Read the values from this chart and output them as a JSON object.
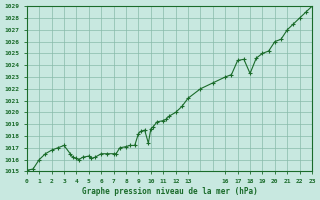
{
  "title": "Graphe pression niveau de la mer (hPa)",
  "bg_color": "#c8e8e0",
  "grid_color": "#88bbaa",
  "line_color": "#1a6b2a",
  "marker_color": "#1a6b2a",
  "xlim": [
    0,
    23
  ],
  "ylim": [
    1015,
    1029
  ],
  "xtick_positions": [
    0,
    1,
    2,
    3,
    4,
    5,
    6,
    7,
    8,
    9,
    10,
    11,
    12,
    13,
    16,
    17,
    18,
    19,
    20,
    21,
    22,
    23
  ],
  "xtick_labels": [
    "0",
    "1",
    "2",
    "3",
    "4",
    "5",
    "6",
    "7",
    "8",
    "9",
    "10",
    "11",
    "12",
    "13",
    "16",
    "17",
    "18",
    "19",
    "20",
    "21",
    "22",
    "23"
  ],
  "ytick_values": [
    1015,
    1016,
    1017,
    1018,
    1019,
    1020,
    1021,
    1022,
    1023,
    1024,
    1025,
    1026,
    1027,
    1028,
    1029
  ],
  "x": [
    0,
    0.5,
    1,
    1.5,
    2,
    2.5,
    3,
    3.5,
    3.7,
    4,
    4.2,
    4.5,
    5,
    5.2,
    5.5,
    6,
    6.5,
    7,
    7.2,
    7.5,
    8,
    8.3,
    8.7,
    9,
    9.2,
    9.5,
    9.8,
    10,
    10.2,
    10.5,
    11,
    11.2,
    11.5,
    12,
    12.5,
    13,
    14,
    15,
    16,
    16.5,
    17,
    17.5,
    18,
    18.5,
    19,
    19.5,
    20,
    20.5,
    21,
    21.5,
    22,
    22.5,
    23
  ],
  "y": [
    1015.1,
    1015.2,
    1016.0,
    1016.5,
    1016.8,
    1017.0,
    1017.2,
    1016.5,
    1016.2,
    1016.1,
    1016.0,
    1016.2,
    1016.3,
    1016.1,
    1016.2,
    1016.5,
    1016.5,
    1016.5,
    1016.5,
    1017.0,
    1017.1,
    1017.2,
    1017.2,
    1018.2,
    1018.4,
    1018.5,
    1017.4,
    1018.6,
    1018.8,
    1019.2,
    1019.3,
    1019.4,
    1019.7,
    1020.0,
    1020.5,
    1021.2,
    1022.0,
    1022.5,
    1023.0,
    1023.2,
    1024.4,
    1024.5,
    1023.3,
    1024.6,
    1025.0,
    1025.2,
    1026.0,
    1026.2,
    1027.0,
    1027.5,
    1028.0,
    1028.5,
    1029.0
  ]
}
